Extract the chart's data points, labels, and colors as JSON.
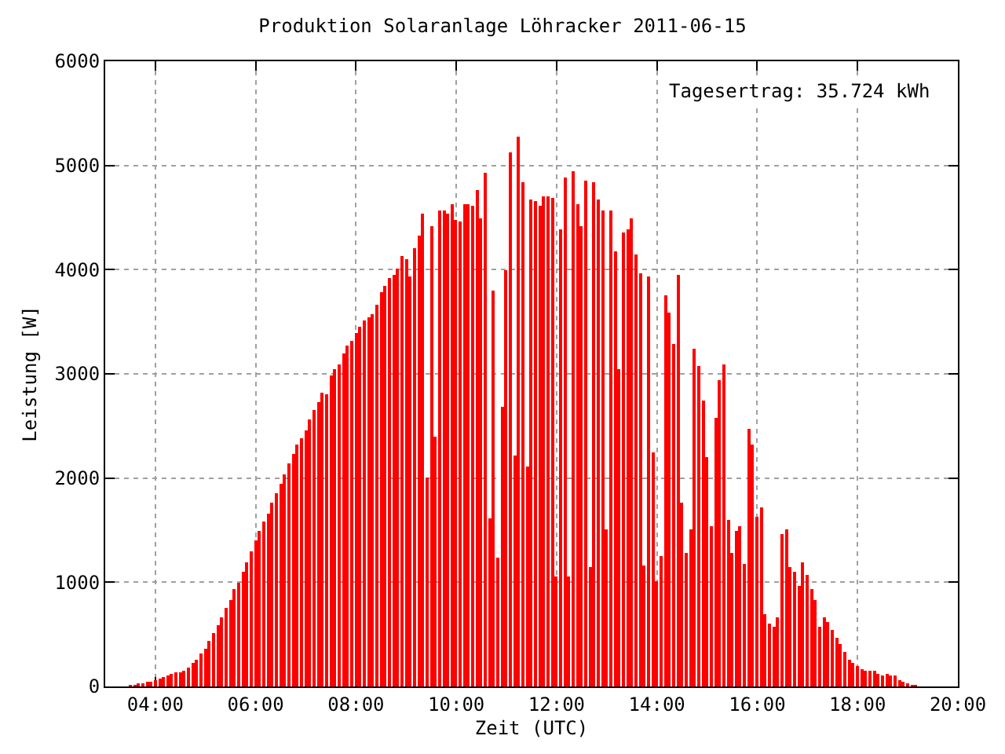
{
  "chart_data": {
    "type": "bar",
    "title": "Produktion Solaranlage Löhracker 2011-06-15",
    "xlabel": "Zeit (UTC)",
    "ylabel": "Leistung [W]",
    "annotations": [
      "Tagesertrag: 35.724 kWh"
    ],
    "x": [
      "2011-06-15T03:30",
      "2011-06-15T03:35",
      "2011-06-15T03:40",
      "2011-06-15T03:45",
      "2011-06-15T03:50",
      "2011-06-15T03:55",
      "2011-06-15T04:00",
      "2011-06-15T04:05",
      "2011-06-15T04:10",
      "2011-06-15T04:15",
      "2011-06-15T04:20",
      "2011-06-15T04:25",
      "2011-06-15T04:30",
      "2011-06-15T04:35",
      "2011-06-15T04:40",
      "2011-06-15T04:45",
      "2011-06-15T04:50",
      "2011-06-15T04:55",
      "2011-06-15T05:00",
      "2011-06-15T05:05",
      "2011-06-15T05:10",
      "2011-06-15T05:15",
      "2011-06-15T05:20",
      "2011-06-15T05:25",
      "2011-06-15T05:30",
      "2011-06-15T05:35",
      "2011-06-15T05:40",
      "2011-06-15T05:45",
      "2011-06-15T05:50",
      "2011-06-15T05:55",
      "2011-06-15T06:00",
      "2011-06-15T06:05",
      "2011-06-15T06:10",
      "2011-06-15T06:15",
      "2011-06-15T06:20",
      "2011-06-15T06:25",
      "2011-06-15T06:30",
      "2011-06-15T06:35",
      "2011-06-15T06:40",
      "2011-06-15T06:45",
      "2011-06-15T06:50",
      "2011-06-15T06:55",
      "2011-06-15T07:00",
      "2011-06-15T07:05",
      "2011-06-15T07:10",
      "2011-06-15T07:15",
      "2011-06-15T07:20",
      "2011-06-15T07:25",
      "2011-06-15T07:30",
      "2011-06-15T07:35",
      "2011-06-15T07:40",
      "2011-06-15T07:45",
      "2011-06-15T07:50",
      "2011-06-15T07:55",
      "2011-06-15T08:00",
      "2011-06-15T08:05",
      "2011-06-15T08:10",
      "2011-06-15T08:15",
      "2011-06-15T08:20",
      "2011-06-15T08:25",
      "2011-06-15T08:30",
      "2011-06-15T08:35",
      "2011-06-15T08:40",
      "2011-06-15T08:45",
      "2011-06-15T08:50",
      "2011-06-15T08:55",
      "2011-06-15T09:00",
      "2011-06-15T09:05",
      "2011-06-15T09:10",
      "2011-06-15T09:15",
      "2011-06-15T09:20",
      "2011-06-15T09:25",
      "2011-06-15T09:30",
      "2011-06-15T09:35",
      "2011-06-15T09:40",
      "2011-06-15T09:45",
      "2011-06-15T09:50",
      "2011-06-15T09:55",
      "2011-06-15T10:00",
      "2011-06-15T10:05",
      "2011-06-15T10:10",
      "2011-06-15T10:15",
      "2011-06-15T10:20",
      "2011-06-15T10:25",
      "2011-06-15T10:30",
      "2011-06-15T10:35",
      "2011-06-15T10:40",
      "2011-06-15T10:45",
      "2011-06-15T10:50",
      "2011-06-15T10:55",
      "2011-06-15T11:00",
      "2011-06-15T11:05",
      "2011-06-15T11:10",
      "2011-06-15T11:15",
      "2011-06-15T11:20",
      "2011-06-15T11:25",
      "2011-06-15T11:30",
      "2011-06-15T11:35",
      "2011-06-15T11:40",
      "2011-06-15T11:45",
      "2011-06-15T11:50",
      "2011-06-15T11:55",
      "2011-06-15T12:00",
      "2011-06-15T12:05",
      "2011-06-15T12:10",
      "2011-06-15T12:15",
      "2011-06-15T12:20",
      "2011-06-15T12:25",
      "2011-06-15T12:30",
      "2011-06-15T12:35",
      "2011-06-15T12:40",
      "2011-06-15T12:45",
      "2011-06-15T12:50",
      "2011-06-15T12:55",
      "2011-06-15T13:00",
      "2011-06-15T13:05",
      "2011-06-15T13:10",
      "2011-06-15T13:15",
      "2011-06-15T13:20",
      "2011-06-15T13:25",
      "2011-06-15T13:30",
      "2011-06-15T13:35",
      "2011-06-15T13:40",
      "2011-06-15T13:45",
      "2011-06-15T13:50",
      "2011-06-15T13:55",
      "2011-06-15T14:00",
      "2011-06-15T14:05",
      "2011-06-15T14:10",
      "2011-06-15T14:15",
      "2011-06-15T14:20",
      "2011-06-15T14:25",
      "2011-06-15T14:30",
      "2011-06-15T14:35",
      "2011-06-15T14:40",
      "2011-06-15T14:45",
      "2011-06-15T14:50",
      "2011-06-15T14:55",
      "2011-06-15T15:00",
      "2011-06-15T15:05",
      "2011-06-15T15:10",
      "2011-06-15T15:15",
      "2011-06-15T15:20",
      "2011-06-15T15:25",
      "2011-06-15T15:30",
      "2011-06-15T15:35",
      "2011-06-15T15:40",
      "2011-06-15T15:45",
      "2011-06-15T15:50",
      "2011-06-15T15:55",
      "2011-06-15T16:00",
      "2011-06-15T16:05",
      "2011-06-15T16:10",
      "2011-06-15T16:15",
      "2011-06-15T16:20",
      "2011-06-15T16:25",
      "2011-06-15T16:30",
      "2011-06-15T16:35",
      "2011-06-15T16:40",
      "2011-06-15T16:45",
      "2011-06-15T16:50",
      "2011-06-15T16:55",
      "2011-06-15T17:00",
      "2011-06-15T17:05",
      "2011-06-15T17:10",
      "2011-06-15T17:15",
      "2011-06-15T17:20",
      "2011-06-15T17:25",
      "2011-06-15T17:30",
      "2011-06-15T17:35",
      "2011-06-15T17:40",
      "2011-06-15T17:45",
      "2011-06-15T17:50",
      "2011-06-15T17:55",
      "2011-06-15T18:00",
      "2011-06-15T18:05",
      "2011-06-15T18:10",
      "2011-06-15T18:15",
      "2011-06-15T18:20",
      "2011-06-15T18:25",
      "2011-06-15T18:30",
      "2011-06-15T18:35",
      "2011-06-15T18:40",
      "2011-06-15T18:45",
      "2011-06-15T18:50",
      "2011-06-15T18:55",
      "2011-06-15T19:00",
      "2011-06-15T19:05",
      "2011-06-15T19:10"
    ],
    "values": [
      10,
      10,
      25,
      25,
      40,
      40,
      60,
      75,
      90,
      105,
      120,
      135,
      135,
      150,
      180,
      225,
      255,
      315,
      360,
      435,
      510,
      585,
      660,
      750,
      825,
      930,
      1000,
      1095,
      1185,
      1290,
      1395,
      1485,
      1590,
      1665,
      1770,
      1860,
      1950,
      2040,
      2145,
      2235,
      2325,
      2385,
      2460,
      2565,
      2655,
      2730,
      2820,
      2805,
      2985,
      3045,
      3090,
      3195,
      3270,
      3315,
      3390,
      3450,
      3510,
      3540,
      3570,
      3660,
      3780,
      3840,
      3915,
      3945,
      4005,
      4125,
      4095,
      3930,
      4200,
      4320,
      4545,
      2005,
      4410,
      2400,
      4575,
      4575,
      4545,
      4635,
      4470,
      4455,
      4635,
      4635,
      4620,
      4770,
      4485,
      4935,
      1620,
      3795,
      1230,
      2685,
      3990,
      5130,
      2220,
      5280,
      4845,
      2115,
      4680,
      4665,
      4620,
      4710,
      4710,
      4695,
      1050,
      4380,
      4890,
      1050,
      4950,
      4635,
      4410,
      4860,
      1140,
      4845,
      4680,
      4575,
      1515,
      4575,
      4170,
      3045,
      4350,
      4380,
      4485,
      4140,
      3960,
      1155,
      3930,
      2250,
      1005,
      1245,
      3750,
      3585,
      3285,
      3945,
      1770,
      1275,
      1515,
      3240,
      3075,
      2745,
      2205,
      1545,
      2580,
      2940,
      3090,
      1605,
      1275,
      1485,
      1545,
      1170,
      2475,
      2325,
      1635,
      1725,
      690,
      600,
      570,
      660,
      1455,
      1515,
      1140,
      1095,
      960,
      1185,
      1065,
      930,
      825,
      570,
      660,
      615,
      540,
      465,
      405,
      330,
      255,
      225,
      195,
      165,
      150,
      150,
      150,
      120,
      105,
      120,
      105,
      105,
      60,
      45,
      30,
      15,
      15
    ],
    "color": "#ff0000",
    "xlim": [
      "2011-06-15T03:00",
      "2011-06-15T20:00"
    ],
    "xticks": [
      {
        "value": "2011-06-15T04:00",
        "label": "04:00"
      },
      {
        "value": "2011-06-15T06:00",
        "label": "06:00"
      },
      {
        "value": "2011-06-15T08:00",
        "label": "08:00"
      },
      {
        "value": "2011-06-15T10:00",
        "label": "10:00"
      },
      {
        "value": "2011-06-15T12:00",
        "label": "12:00"
      },
      {
        "value": "2011-06-15T14:00",
        "label": "14:00"
      },
      {
        "value": "2011-06-15T16:00",
        "label": "16:00"
      },
      {
        "value": "2011-06-15T18:00",
        "label": "18:00"
      },
      {
        "value": "2011-06-15T20:00",
        "label": "20:00"
      }
    ],
    "ylim": [
      0,
      6000
    ],
    "yticks": [
      0,
      1000,
      2000,
      3000,
      4000,
      5000,
      6000
    ],
    "grid": true
  }
}
